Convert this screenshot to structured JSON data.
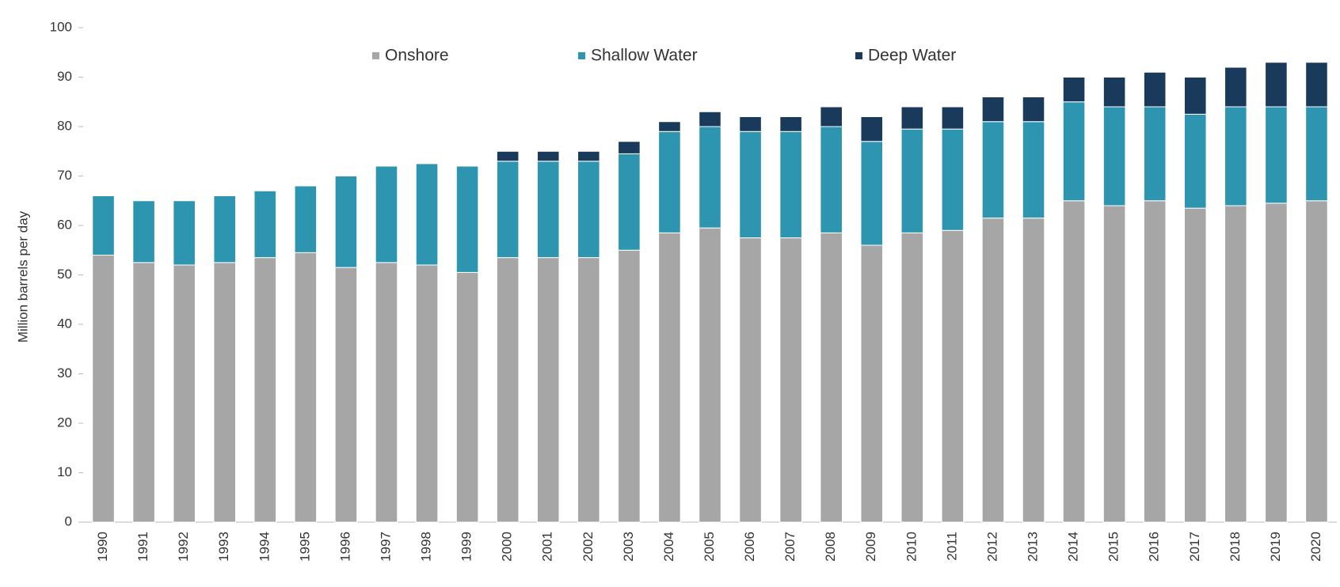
{
  "chart_data": {
    "type": "bar",
    "stacked": true,
    "y_label": "Million barrels per day",
    "categories": [
      "1990",
      "1991",
      "1992",
      "1993",
      "1994",
      "1995",
      "1996",
      "1997",
      "1998",
      "1999",
      "2000",
      "2001",
      "2002",
      "2003",
      "2004",
      "2005",
      "2006",
      "2007",
      "2008",
      "2009",
      "2010",
      "2011",
      "2012",
      "2013",
      "2014",
      "2015",
      "2016",
      "2017",
      "2018",
      "2019",
      "2020"
    ],
    "series": [
      {
        "name": "Onshore",
        "color": "#a6a6a6",
        "values": [
          54,
          52.5,
          52,
          52.5,
          53.5,
          54.5,
          51.5,
          52.5,
          52,
          50.5,
          53.5,
          53.5,
          53.5,
          55,
          58.5,
          59.5,
          57.5,
          57.5,
          58.5,
          56,
          58.5,
          59,
          61.5,
          61.5,
          65,
          64,
          65,
          63.5,
          64,
          64.5,
          65
        ]
      },
      {
        "name": "Shallow Water",
        "color": "#2e95b0",
        "values": [
          12,
          12.5,
          13,
          13.5,
          13.5,
          13.5,
          18.5,
          19.5,
          20.5,
          21.5,
          19.5,
          19.5,
          19.5,
          19.5,
          20.5,
          20.5,
          21.5,
          21.5,
          21.5,
          21,
          21,
          20.5,
          19.5,
          19.5,
          20,
          20,
          19,
          19,
          20,
          19.5,
          19
        ]
      },
      {
        "name": "Deep Water",
        "color": "#1a3a5c",
        "values": [
          0,
          0,
          0,
          0,
          0,
          0,
          0,
          0,
          0,
          0,
          2,
          2,
          2,
          2.5,
          2,
          3,
          3,
          3,
          4,
          5,
          4.5,
          4.5,
          5,
          5,
          5,
          6,
          7,
          7.5,
          8,
          9,
          9
        ]
      }
    ],
    "ylim": [
      0,
      100
    ],
    "yticks": [
      0,
      10,
      20,
      30,
      40,
      50,
      60,
      70,
      80,
      90,
      100
    ],
    "legend": "top"
  }
}
